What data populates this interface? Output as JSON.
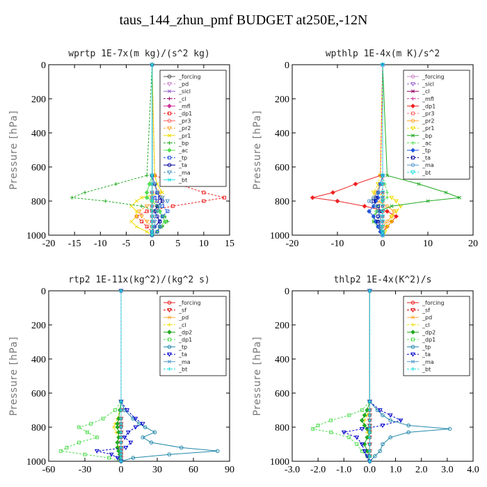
{
  "title": "taus_144_zhun_pmf  BUDGET at250E,-12N",
  "chart_data": [
    {
      "type": "line",
      "title": "wprtp  1E-7x(m kg)/(s^2 kg)",
      "ylabel": "Pressure [hPa]",
      "xlim": [
        -20,
        15
      ],
      "ylim": [
        1000,
        0
      ],
      "xticks": [
        -20,
        -15,
        -10,
        -5,
        0,
        5,
        10,
        15
      ],
      "xtick_labels": [
        "-20",
        "-15",
        "-10",
        "-5",
        "0",
        "5",
        "10",
        "15"
      ],
      "yticks": [
        0,
        200,
        400,
        600,
        800,
        1000
      ],
      "ytick_labels": [
        "0",
        "200",
        "400",
        "600",
        "800",
        "1000"
      ],
      "legend_position": "top-right",
      "pressure": [
        0,
        650,
        700,
        750,
        780,
        800,
        830,
        860,
        890,
        920,
        950,
        980,
        1000
      ],
      "series": [
        {
          "name": "_forcing",
          "color": "#555555",
          "values": [
            0,
            0,
            0,
            0,
            0,
            0,
            0,
            0,
            0,
            0,
            0,
            0,
            0
          ]
        },
        {
          "name": "_pd",
          "color": "#cc88cc",
          "values": [
            0,
            0,
            0,
            0,
            0,
            0,
            0,
            0,
            0,
            0,
            0,
            0,
            0
          ]
        },
        {
          "name": "_sicl",
          "color": "#9966cc",
          "values": [
            0,
            0,
            0,
            0,
            0,
            0,
            0,
            0,
            0,
            0,
            0,
            0,
            0
          ]
        },
        {
          "name": "_cl",
          "color": "#990066",
          "values": [
            0,
            0,
            0,
            0,
            0,
            0,
            0,
            0,
            0,
            0,
            0,
            0,
            0
          ]
        },
        {
          "name": "_mfl",
          "color": "#cc3399",
          "values": [
            0,
            0,
            0,
            0,
            0,
            0,
            0,
            0,
            0,
            0,
            0,
            0,
            0
          ]
        },
        {
          "name": "_dp1",
          "color": "#ee2222",
          "values": [
            0,
            0.5,
            5,
            10,
            14,
            10,
            4,
            -1,
            -3,
            -2,
            -1,
            0,
            0
          ]
        },
        {
          "name": "_pr3",
          "color": "#ff6666",
          "values": [
            0,
            0,
            0,
            0,
            0,
            0,
            0,
            0,
            0,
            0,
            0,
            0,
            0
          ]
        },
        {
          "name": "_pr2",
          "color": "#ffaa33",
          "values": [
            0,
            0,
            0.5,
            1.5,
            2,
            1,
            -1,
            -2.5,
            -2,
            -1,
            0,
            0,
            0
          ]
        },
        {
          "name": "_pr1",
          "color": "#eedd00",
          "values": [
            0,
            0.5,
            1,
            2,
            -2,
            -3,
            -4,
            -3,
            -3,
            -4,
            -3,
            -1,
            0
          ]
        },
        {
          "name": "_bp",
          "color": "#22aa22",
          "values": [
            0,
            -1,
            -7,
            -13,
            -15.5,
            -9,
            -2,
            1,
            2.5,
            3,
            2,
            1,
            0
          ]
        },
        {
          "name": "_ac",
          "color": "#55dd55",
          "values": [
            0,
            0,
            -0.5,
            -1,
            -1,
            0,
            1,
            1.5,
            2,
            2.5,
            1.5,
            1,
            0
          ]
        },
        {
          "name": "_tp",
          "color": "#2255dd",
          "values": [
            0,
            0,
            0.5,
            1,
            0.5,
            1,
            2,
            3,
            2,
            1.5,
            1.5,
            1,
            0
          ]
        },
        {
          "name": "_ta",
          "color": "#000099",
          "values": [
            0,
            0,
            0.5,
            1,
            1.5,
            2,
            1,
            0.5,
            1,
            1.5,
            0.5,
            0,
            0
          ]
        },
        {
          "name": "_ma",
          "color": "#5599cc",
          "values": [
            0,
            0,
            0.5,
            1,
            2,
            3,
            1.5,
            1,
            0.5,
            0.5,
            0.5,
            0,
            0
          ]
        },
        {
          "name": "_bt",
          "color": "#22dddd",
          "values": [
            0,
            0,
            0,
            0,
            0,
            0,
            0,
            0,
            0,
            0,
            0,
            0,
            0
          ]
        }
      ]
    },
    {
      "type": "line",
      "title": "wpthlp  1E-4x(m K)/s^2",
      "ylabel": "Pressure [hPa]",
      "xlim": [
        -20,
        20
      ],
      "ylim": [
        1000,
        0
      ],
      "xticks": [
        -20,
        -10,
        0,
        10,
        20
      ],
      "xtick_labels": [
        "-20",
        "-10",
        "0",
        "10",
        "20"
      ],
      "yticks": [
        0,
        200,
        400,
        600,
        800,
        1000
      ],
      "ytick_labels": [
        "0",
        "200",
        "400",
        "600",
        "800",
        "1000"
      ],
      "legend_position": "top-right",
      "pressure": [
        0,
        650,
        700,
        750,
        780,
        800,
        830,
        860,
        890,
        920,
        950,
        980,
        1000
      ],
      "series": [
        {
          "name": "_forcing",
          "color": "#cc88cc",
          "values": [
            0,
            0,
            0,
            0,
            0,
            0,
            0,
            0,
            0,
            0,
            0,
            0,
            0
          ]
        },
        {
          "name": "_sicl",
          "color": "#9966cc",
          "values": [
            0,
            0,
            0,
            0,
            0,
            0,
            0,
            0,
            0,
            0,
            0,
            0,
            0
          ]
        },
        {
          "name": "_cl",
          "color": "#990066",
          "values": [
            0,
            0,
            0,
            0,
            0,
            0,
            0,
            0,
            0,
            0,
            0,
            0,
            0
          ]
        },
        {
          "name": "_mfl",
          "color": "#cc3399",
          "values": [
            0,
            0,
            0,
            0,
            0,
            0,
            0,
            0,
            0,
            0,
            0,
            0,
            0
          ]
        },
        {
          "name": "_dp1",
          "color": "#ee2222",
          "values": [
            0,
            -0.5,
            -6,
            -11,
            -15.5,
            -10,
            -4,
            1,
            3,
            2,
            1,
            0,
            0
          ]
        },
        {
          "name": "_pr3",
          "color": "#ff6666",
          "values": [
            0,
            0,
            0,
            0,
            0,
            0,
            0,
            0,
            0,
            0,
            0,
            0,
            0
          ]
        },
        {
          "name": "_pr2",
          "color": "#ffaa33",
          "values": [
            0,
            0,
            -0.5,
            -1.5,
            -2,
            -1,
            1,
            2.5,
            2,
            1,
            0,
            0,
            0
          ]
        },
        {
          "name": "_pr1",
          "color": "#eedd00",
          "values": [
            0,
            -0.5,
            -1,
            -2,
            2,
            3,
            4,
            3,
            2,
            2,
            1,
            0.5,
            0
          ]
        },
        {
          "name": "_bp",
          "color": "#22aa22",
          "values": [
            0,
            1,
            8,
            14,
            17,
            10,
            2,
            -1,
            -2,
            -2,
            -1,
            0,
            0
          ]
        },
        {
          "name": "_ac",
          "color": "#55dd55",
          "values": [
            0,
            0,
            0.5,
            1,
            1,
            0,
            -1,
            -1.5,
            -2,
            -2,
            -1,
            -0.5,
            0
          ]
        },
        {
          "name": "_tp",
          "color": "#2255dd",
          "values": [
            0,
            0,
            -0.5,
            -1,
            -1,
            -1.5,
            -2,
            -3,
            -2,
            -1.5,
            -1,
            -0.5,
            0
          ]
        },
        {
          "name": "_ta",
          "color": "#000099",
          "values": [
            0,
            0,
            -0.5,
            -1,
            -1.5,
            -2,
            -1,
            -0.5,
            -1,
            -1,
            -0.5,
            0,
            0
          ]
        },
        {
          "name": "_ma",
          "color": "#5599cc",
          "values": [
            0,
            0,
            -0.5,
            -1,
            -2,
            -3,
            -1.5,
            -1,
            -0.5,
            -0.5,
            -0.5,
            0,
            0
          ]
        },
        {
          "name": "_bt",
          "color": "#22dddd",
          "values": [
            0,
            0,
            0,
            0,
            0,
            0,
            0,
            0,
            0,
            0,
            0,
            0,
            0
          ]
        }
      ]
    },
    {
      "type": "line",
      "title": "rtp2  1E-11x(kg^2)/(kg^2 s)",
      "ylabel": "Pressure [hPa]",
      "xlim": [
        -60,
        90
      ],
      "ylim": [
        1000,
        0
      ],
      "xticks": [
        -60,
        -30,
        0,
        30,
        60,
        90
      ],
      "xtick_labels": [
        "-60",
        "-30",
        "0",
        "30",
        "60",
        "90"
      ],
      "yticks": [
        0,
        200,
        400,
        600,
        800,
        1000
      ],
      "ytick_labels": [
        "0",
        "200",
        "400",
        "600",
        "800",
        "1000"
      ],
      "legend_position": "top-right",
      "pressure": [
        0,
        650,
        700,
        750,
        780,
        800,
        830,
        860,
        890,
        920,
        940,
        960,
        980,
        1000
      ],
      "series": [
        {
          "name": "_forcing",
          "color": "#ee2222",
          "values": [
            0,
            0,
            0,
            0,
            0,
            0,
            0,
            0,
            0,
            0,
            0,
            0,
            0,
            0
          ]
        },
        {
          "name": "_sf",
          "color": "#dd0000",
          "values": [
            0,
            0,
            0,
            0,
            0,
            0,
            0,
            0,
            0,
            0,
            0,
            0,
            0,
            0
          ]
        },
        {
          "name": "_pd",
          "color": "#ffaa33",
          "values": [
            0,
            0,
            0,
            0,
            0,
            0,
            0,
            0,
            0,
            0,
            0,
            0,
            0,
            0
          ]
        },
        {
          "name": "_cl",
          "color": "#eedd00",
          "values": [
            0,
            0,
            -1,
            -3,
            -5,
            -6,
            -4,
            -2,
            -3,
            -2,
            -1,
            -1,
            0,
            0
          ]
        },
        {
          "name": "_dp2",
          "color": "#22aa22",
          "values": [
            0,
            0,
            -1,
            -2,
            -3,
            -3,
            -2,
            -2,
            -3,
            -3,
            -2,
            -1,
            -1,
            0
          ]
        },
        {
          "name": "_dp1",
          "color": "#55dd55",
          "values": [
            0,
            0,
            -5,
            -15,
            -25,
            -35,
            -28,
            -20,
            -35,
            -45,
            -50,
            -30,
            -10,
            0
          ]
        },
        {
          "name": "_tp",
          "color": "#2288aa",
          "values": [
            0,
            0,
            3,
            10,
            15,
            20,
            28,
            18,
            25,
            50,
            80,
            40,
            10,
            0
          ]
        },
        {
          "name": "_ta",
          "color": "#0000cc",
          "values": [
            0,
            0,
            5,
            12,
            18,
            12,
            6,
            3,
            8,
            4,
            -20,
            -8,
            -3,
            0
          ]
        },
        {
          "name": "_ma",
          "color": "#5599cc",
          "values": [
            0,
            0,
            0,
            0,
            0,
            0,
            0,
            0,
            0,
            0,
            0,
            0,
            0,
            0
          ]
        },
        {
          "name": "_bt",
          "color": "#22dddd",
          "values": [
            0,
            0,
            0,
            0,
            0,
            0,
            0,
            0,
            0,
            0,
            0,
            0,
            0,
            0
          ]
        }
      ]
    },
    {
      "type": "line",
      "title": "thlp2  1E-4x(K^2)/s",
      "ylabel": "Pressure [hPa]",
      "xlim": [
        -3.0,
        4.0
      ],
      "ylim": [
        1000,
        0
      ],
      "xticks": [
        -3.0,
        -2.0,
        -1.0,
        0.0,
        1.0,
        2.0,
        3.0,
        4.0
      ],
      "xtick_labels": [
        "-3.0",
        "-2.0",
        "-1.0",
        "0.0",
        "1.0",
        "2.0",
        "3.0",
        "4.0"
      ],
      "yticks": [
        0,
        200,
        400,
        600,
        800,
        1000
      ],
      "ytick_labels": [
        "0",
        "200",
        "400",
        "600",
        "800",
        "1000"
      ],
      "legend_position": "top-right",
      "pressure": [
        0,
        650,
        700,
        730,
        760,
        790,
        810,
        830,
        860,
        900,
        940,
        970,
        1000
      ],
      "series": [
        {
          "name": "_forcing",
          "color": "#ee2222",
          "values": [
            0,
            0,
            0,
            0,
            0,
            0,
            0,
            0,
            0,
            0,
            0,
            0,
            0
          ]
        },
        {
          "name": "_sf",
          "color": "#dd0000",
          "values": [
            0,
            0,
            0,
            0,
            0,
            0,
            0,
            0,
            0,
            0,
            0,
            0,
            0
          ]
        },
        {
          "name": "_pd",
          "color": "#ffaa33",
          "values": [
            0,
            0,
            0,
            0,
            0,
            0,
            0,
            0,
            0,
            0,
            0,
            0,
            0
          ]
        },
        {
          "name": "_cl",
          "color": "#eedd00",
          "values": [
            0,
            0,
            0,
            -0.1,
            -0.2,
            -0.2,
            -0.1,
            -0.1,
            0,
            0,
            0,
            0,
            0
          ]
        },
        {
          "name": "_dp2",
          "color": "#22aa22",
          "values": [
            0,
            0,
            -0.1,
            -0.2,
            -0.3,
            -0.2,
            -0.1,
            0,
            -0.1,
            -0.2,
            -0.1,
            0,
            0
          ]
        },
        {
          "name": "_dp1",
          "color": "#55dd55",
          "values": [
            0,
            0,
            -0.3,
            -0.8,
            -1.5,
            -2.0,
            -2.2,
            -1.5,
            -0.8,
            -0.5,
            -0.3,
            -0.1,
            0
          ]
        },
        {
          "name": "_tp",
          "color": "#2288aa",
          "values": [
            0,
            0,
            0.3,
            0.5,
            0.8,
            1.5,
            3.1,
            1.5,
            0.8,
            0.5,
            0.4,
            0.2,
            0
          ]
        },
        {
          "name": "_ta",
          "color": "#0000cc",
          "values": [
            0,
            0,
            0.4,
            0.8,
            1.2,
            0.5,
            -0.3,
            -1.0,
            -0.5,
            -0.3,
            -0.2,
            -0.1,
            0
          ]
        },
        {
          "name": "_ma",
          "color": "#5599cc",
          "values": [
            0,
            0,
            0,
            0,
            0,
            0,
            0,
            0,
            0,
            0,
            0,
            0,
            0
          ]
        },
        {
          "name": "_bt",
          "color": "#22dddd",
          "values": [
            0,
            0,
            0,
            0,
            0,
            0,
            0,
            0,
            0,
            0,
            0,
            0,
            0
          ]
        }
      ]
    }
  ]
}
